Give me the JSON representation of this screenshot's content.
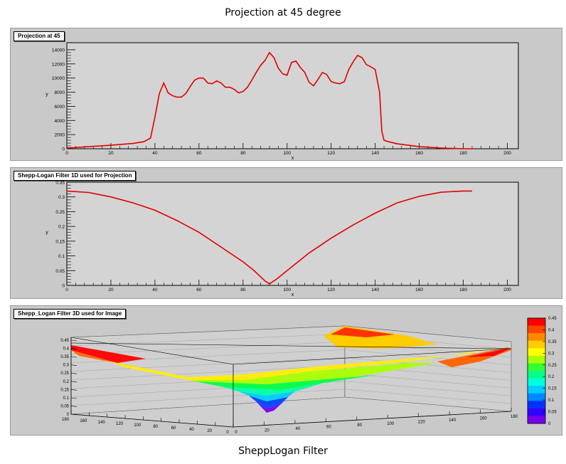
{
  "captions": {
    "top": "Projection at 45 degree",
    "bottom": "SheppLogan Filter"
  },
  "colors": {
    "line": "#e00000",
    "frame": "#d4d4d4",
    "panel": "#c9c9c9"
  },
  "chart_data": [
    {
      "type": "line",
      "title": "Projection at 45",
      "xlabel": "x",
      "ylabel": "y",
      "xlim": [
        0,
        205
      ],
      "ylim": [
        0,
        15000
      ],
      "xticks": [
        0,
        20,
        40,
        60,
        80,
        100,
        120,
        140,
        160,
        180,
        200
      ],
      "yticks": [
        0,
        2000,
        4000,
        6000,
        8000,
        10000,
        12000,
        14000
      ],
      "series": [
        {
          "x": [
            0,
            10,
            20,
            30,
            35,
            38,
            40,
            42,
            44,
            46,
            48,
            50,
            52,
            54,
            56,
            58,
            60,
            62,
            64,
            66,
            68,
            70,
            72,
            74,
            76,
            78,
            80,
            82,
            84,
            86,
            88,
            90,
            92,
            94,
            96,
            98,
            100,
            102,
            104,
            106,
            108,
            110,
            112,
            114,
            116,
            118,
            120,
            122,
            124,
            126,
            128,
            130,
            132,
            134,
            136,
            138,
            140,
            142,
            143,
            144,
            146,
            150,
            160,
            170,
            180,
            185
          ],
          "y": [
            100,
            300,
            500,
            750,
            1000,
            1500,
            4500,
            7800,
            9300,
            7900,
            7500,
            7300,
            7300,
            7800,
            8800,
            9700,
            10000,
            10000,
            9300,
            9200,
            9600,
            9300,
            8700,
            8700,
            8400,
            7900,
            8100,
            8700,
            9700,
            10800,
            11800,
            12500,
            13600,
            12900,
            11400,
            10600,
            10400,
            12200,
            12400,
            11500,
            10800,
            9400,
            8900,
            9800,
            10800,
            10500,
            9500,
            9300,
            9200,
            9500,
            11200,
            12300,
            13200,
            12900,
            11900,
            11600,
            11200,
            8000,
            2500,
            1200,
            1000,
            700,
            300,
            100,
            0,
            0
          ]
        }
      ]
    },
    {
      "type": "line",
      "title": "Shepp-Logan Filter 1D used for Projection",
      "xlabel": "x",
      "ylabel": "y",
      "xlim": [
        0,
        205
      ],
      "ylim": [
        0,
        0.35
      ],
      "xticks": [
        0,
        20,
        40,
        60,
        80,
        100,
        120,
        140,
        160,
        180,
        200
      ],
      "yticks": [
        0,
        0.05,
        0.1,
        0.15,
        0.2,
        0.25,
        0.3,
        0.35
      ],
      "series": [
        {
          "x": [
            0,
            10,
            20,
            30,
            40,
            50,
            60,
            70,
            80,
            85,
            90,
            92,
            95,
            100,
            110,
            120,
            130,
            140,
            150,
            160,
            170,
            180,
            184
          ],
          "y": [
            0.32,
            0.315,
            0.3,
            0.28,
            0.255,
            0.22,
            0.18,
            0.13,
            0.08,
            0.05,
            0.015,
            0.005,
            0.02,
            0.05,
            0.11,
            0.16,
            0.205,
            0.245,
            0.28,
            0.302,
            0.316,
            0.32,
            0.32
          ]
        }
      ]
    },
    {
      "type": "surface",
      "title": "Shepp_Logan Filter 3D used for Image",
      "zlim": [
        0,
        0.45
      ],
      "zticks": [
        0,
        0.05,
        0.1,
        0.15,
        0.2,
        0.25,
        0.3,
        0.35,
        0.4,
        0.45
      ],
      "xticks": [
        0,
        20,
        40,
        60,
        80,
        100,
        120,
        140,
        160,
        180
      ],
      "yticks": [
        0,
        20,
        40,
        60,
        80,
        100,
        120,
        140,
        160,
        180
      ],
      "palette_ticks": [
        0,
        0.05,
        0.1,
        0.15,
        0.2,
        0.25,
        0.3,
        0.35,
        0.4,
        0.45
      ]
    }
  ]
}
